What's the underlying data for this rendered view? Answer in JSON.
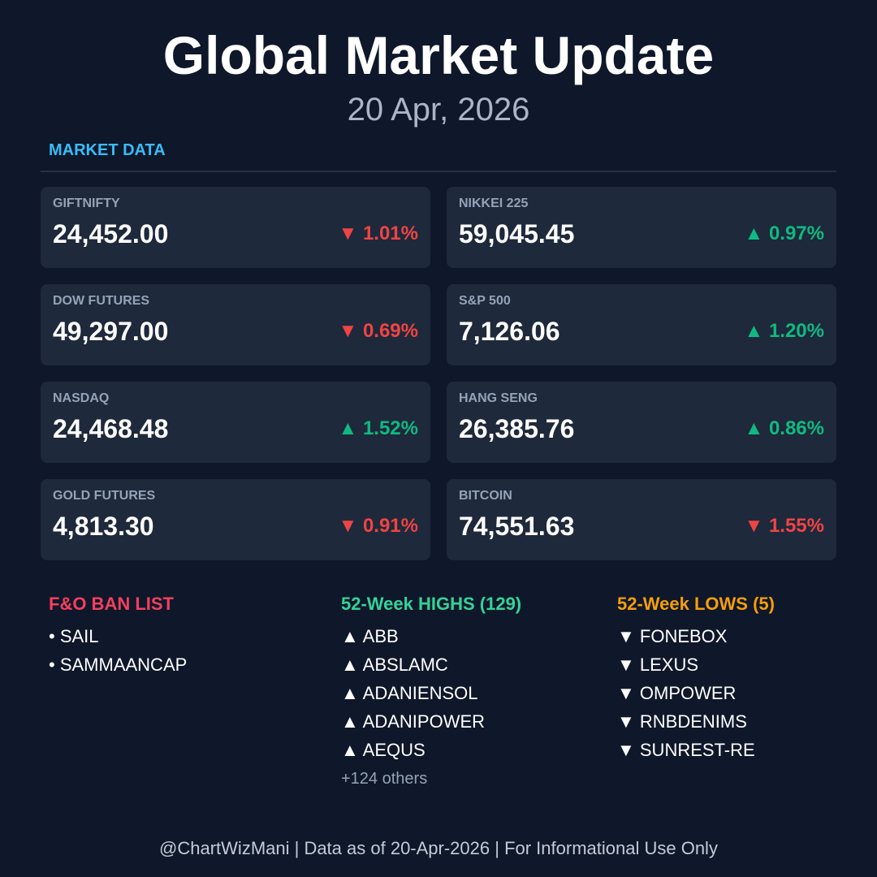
{
  "header": {
    "title": "Global Market Update",
    "date": "20 Apr, 2026"
  },
  "section_label": "MARKET DATA",
  "cards": [
    {
      "name": "GIFTNIFTY",
      "value": "24,452.00",
      "change": "▼ 1.01%",
      "color": "#ef4444"
    },
    {
      "name": "NIKKEI 225",
      "value": "59,045.45",
      "change": "▲ 0.97%",
      "color": "#10b981"
    },
    {
      "name": "DOW FUTURES",
      "value": "49,297.00",
      "change": "▼ 0.69%",
      "color": "#ef4444"
    },
    {
      "name": "S&P 500",
      "value": "7,126.06",
      "change": "▲ 1.20%",
      "color": "#10b981"
    },
    {
      "name": "NASDAQ",
      "value": "24,468.48",
      "change": "▲ 1.52%",
      "color": "#10b981"
    },
    {
      "name": "HANG SENG",
      "value": "26,385.76",
      "change": "▲ 0.86%",
      "color": "#10b981"
    },
    {
      "name": "GOLD FUTURES",
      "value": "4,813.30",
      "change": "▼ 0.91%",
      "color": "#ef4444"
    },
    {
      "name": "BITCOIN",
      "value": "74,551.63",
      "change": "▼ 1.55%",
      "color": "#ef4444"
    }
  ],
  "lists": [
    {
      "title": "F&O BAN LIST",
      "color": "#f43f5e",
      "items": [
        "• SAIL",
        "• SAMMAANCAP"
      ]
    },
    {
      "title": "52-Week HIGHS (129)",
      "color": "#34d399",
      "items": [
        "▲ ABB",
        "▲ ABSLAMC",
        "▲ ADANIENSOL",
        "▲ ADANIPOWER",
        "▲ AEQUS"
      ],
      "more": "+124 others"
    },
    {
      "title": "52-Week LOWS (5)",
      "color": "#f59e0b",
      "items": [
        "▼ FONEBOX",
        "▼ LEXUS",
        "▼ OMPOWER",
        "▼ RNBDENIMS",
        "▼ SUNREST-RE"
      ]
    }
  ],
  "footer": "@ChartWizMani | Data as of 20-Apr-2026 | For Informational Use Only"
}
